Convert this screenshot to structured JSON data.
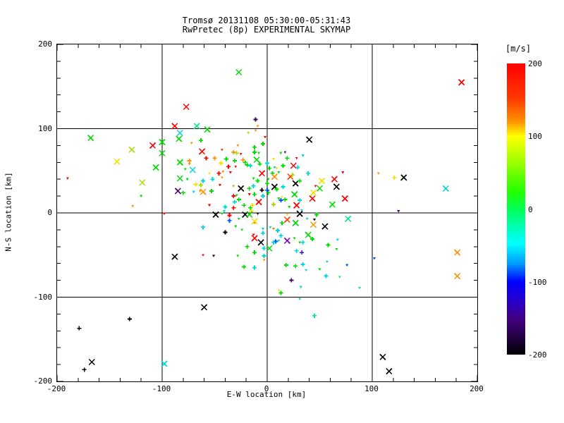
{
  "chart_data": {
    "type": "scatter",
    "title": "Tromsø 20131108 05:30:00-05:31:43",
    "subtitle": "RwPretec (8p) EXPERIMENTAL SKYMAP",
    "xlabel": "E-W location [km]",
    "ylabel": "N-S location [km]",
    "xlim": [
      -200,
      200
    ],
    "ylim": [
      -200,
      200
    ],
    "xticks": [
      -200,
      -100,
      0,
      100,
      200
    ],
    "yticks": [
      -200,
      -100,
      0,
      100,
      200
    ],
    "minor_tick_step": 20,
    "grid": true,
    "legend_position": "right-colorbar",
    "colorbar": {
      "label": "[m/s]",
      "min": -200,
      "max": 200,
      "ticks": [
        200,
        100,
        0,
        -100,
        -200
      ],
      "gradient": [
        {
          "pos": 0,
          "color": "#ff0000"
        },
        {
          "pos": 12,
          "color": "#ff3800"
        },
        {
          "pos": 20,
          "color": "#ff9400"
        },
        {
          "pos": 25,
          "color": "#ffff00"
        },
        {
          "pos": 33,
          "color": "#a8ff00"
        },
        {
          "pos": 44,
          "color": "#22ff00"
        },
        {
          "pos": 50,
          "color": "#00ff55"
        },
        {
          "pos": 58,
          "color": "#00ffd0"
        },
        {
          "pos": 62,
          "color": "#00ffff"
        },
        {
          "pos": 69,
          "color": "#0096ff"
        },
        {
          "pos": 75,
          "color": "#0000ff"
        },
        {
          "pos": 82,
          "color": "#2a00c8"
        },
        {
          "pos": 88,
          "color": "#44007e"
        },
        {
          "pos": 95,
          "color": "#1c0038"
        },
        {
          "pos": 100,
          "color": "#000000"
        }
      ]
    },
    "palette": {
      "r": "#ff0000",
      "or": "#ff4000",
      "o": "#ff9000",
      "y": "#f5e000",
      "ch": "#a8e000",
      "g": "#00dd00",
      "sg": "#00e888",
      "c": "#00d8d8",
      "b": "#0055ff",
      "db": "#2222cc",
      "pu": "#7700bb",
      "dp": "#440066",
      "k": "#000000"
    },
    "marker_legend": {
      "x": "cross-x",
      "p": "plus",
      "d": "small-dot"
    },
    "points": [
      [
        -77,
        126,
        "r",
        "x"
      ],
      [
        -88,
        103,
        "r",
        "x"
      ],
      [
        -83,
        95,
        "c",
        "x"
      ],
      [
        -67,
        103,
        "sg",
        "x"
      ],
      [
        -168,
        89,
        "g",
        "x"
      ],
      [
        -84,
        88,
        "g",
        "x"
      ],
      [
        -129,
        75,
        "ch",
        "x"
      ],
      [
        -109,
        80,
        "r",
        "x"
      ],
      [
        -100,
        84,
        "g",
        "x"
      ],
      [
        -72,
        83,
        "o",
        "d"
      ],
      [
        -100,
        71,
        "g",
        "x"
      ],
      [
        -27,
        167,
        "g",
        "x"
      ],
      [
        -11,
        111,
        "dp",
        "p"
      ],
      [
        -9,
        103,
        "o",
        "d"
      ],
      [
        -57,
        99,
        "g",
        "x"
      ],
      [
        -18,
        95,
        "ch",
        "d"
      ],
      [
        -11,
        98,
        "o",
        "d"
      ],
      [
        -2,
        90,
        "r",
        "d"
      ],
      [
        -63,
        86,
        "g",
        "p"
      ],
      [
        -4,
        82,
        "g",
        "p"
      ],
      [
        -28,
        80,
        "o",
        "d"
      ],
      [
        -12,
        78,
        "g",
        "p"
      ],
      [
        -62,
        73,
        "r",
        "x"
      ],
      [
        -43,
        75,
        "or",
        "d"
      ],
      [
        -32,
        72,
        "o",
        "p"
      ],
      [
        -29,
        71,
        "ch",
        "p"
      ],
      [
        -25,
        70,
        "r",
        "d"
      ],
      [
        -12,
        72,
        "g",
        "p"
      ],
      [
        -8,
        71,
        "g",
        "d"
      ],
      [
        40,
        87,
        "k",
        "x"
      ],
      [
        17,
        72,
        "pu",
        "d"
      ],
      [
        13,
        71,
        "g",
        "d"
      ],
      [
        34,
        68,
        "c",
        "d"
      ],
      [
        185,
        155,
        "r",
        "x"
      ],
      [
        -143,
        61,
        "y",
        "x"
      ],
      [
        -106,
        54,
        "g",
        "x"
      ],
      [
        -83,
        60,
        "g",
        "x"
      ],
      [
        -74,
        62,
        "o",
        "p"
      ],
      [
        -74,
        58,
        "o",
        "d"
      ],
      [
        -71,
        51,
        "c",
        "x"
      ],
      [
        -78,
        52,
        "g",
        "d"
      ],
      [
        -83,
        41,
        "g",
        "x"
      ],
      [
        -76,
        40,
        "g",
        "d"
      ],
      [
        -190,
        41,
        "r",
        "d"
      ],
      [
        -119,
        36,
        "ch",
        "x"
      ],
      [
        -68,
        34,
        "y",
        "p"
      ],
      [
        -85,
        26,
        "dp",
        "x"
      ],
      [
        -80,
        24,
        "g",
        "p"
      ],
      [
        -70,
        25,
        "c",
        "d"
      ],
      [
        -64,
        26,
        "o",
        "d"
      ],
      [
        -120,
        20,
        "g",
        "d"
      ],
      [
        -128,
        8,
        "o",
        "d"
      ],
      [
        -98,
        -1,
        "r",
        "d"
      ],
      [
        -88,
        -52,
        "k",
        "x"
      ],
      [
        -63,
        33,
        "ch",
        "p"
      ],
      [
        -25,
        29,
        "k",
        "x"
      ],
      [
        -10,
        63,
        "g",
        "x"
      ],
      [
        -5,
        47,
        "r",
        "x"
      ],
      [
        -8,
        13,
        "r",
        "x"
      ],
      [
        -61,
        25,
        "o",
        "x"
      ],
      [
        -58,
        65,
        "r",
        "p"
      ],
      [
        -50,
        65,
        "o",
        "p"
      ],
      [
        -39,
        64,
        "g",
        "p"
      ],
      [
        -44,
        59,
        "y",
        "p"
      ],
      [
        -31,
        62,
        "g",
        "p"
      ],
      [
        -23,
        63,
        "o",
        "p"
      ],
      [
        -19,
        57,
        "g",
        "p"
      ],
      [
        -16,
        56,
        "c",
        "p"
      ],
      [
        -37,
        55,
        "r",
        "p"
      ],
      [
        -42,
        49,
        "o",
        "d"
      ],
      [
        -43,
        42,
        "o",
        "d"
      ],
      [
        -46,
        47,
        "r",
        "p"
      ],
      [
        -35,
        48,
        "r",
        "d"
      ],
      [
        -30,
        55,
        "r",
        "d"
      ],
      [
        -21,
        60,
        "g",
        "p"
      ],
      [
        -52,
        40,
        "c",
        "p"
      ],
      [
        -53,
        26,
        "g",
        "p"
      ],
      [
        -32,
        20,
        "r",
        "p"
      ],
      [
        -29,
        21,
        "g",
        "d"
      ],
      [
        -31,
        13,
        "c",
        "p"
      ],
      [
        -27,
        16,
        "g",
        "p"
      ],
      [
        -55,
        9,
        "r",
        "d"
      ],
      [
        -40,
        7,
        "c",
        "p"
      ],
      [
        -22,
        9,
        "g",
        "p"
      ],
      [
        -16,
        6,
        "g",
        "p"
      ],
      [
        -14,
        9,
        "y",
        "p"
      ],
      [
        -7,
        58,
        "g",
        "p"
      ],
      [
        0,
        59,
        "c",
        "p"
      ],
      [
        2,
        53,
        "g",
        "p"
      ],
      [
        1,
        40,
        "g",
        "d"
      ],
      [
        0,
        35,
        "g",
        "p"
      ],
      [
        1,
        24,
        "g",
        "p"
      ],
      [
        -5,
        27,
        "k",
        "p"
      ],
      [
        -9,
        38,
        "g",
        "p"
      ],
      [
        -13,
        41,
        "g",
        "d"
      ],
      [
        -13,
        32,
        "c",
        "p"
      ],
      [
        -17,
        29,
        "g",
        "p"
      ],
      [
        -12,
        22,
        "g",
        "p"
      ],
      [
        -32,
        32,
        "o",
        "d"
      ],
      [
        -45,
        33,
        "r",
        "d"
      ],
      [
        -55,
        47,
        "y",
        "d"
      ],
      [
        -61,
        38,
        "c",
        "p"
      ],
      [
        -41,
        2,
        "c",
        "d"
      ],
      [
        -32,
        6,
        "r",
        "p"
      ],
      [
        -15,
        2,
        "y",
        "p"
      ],
      [
        6,
        64,
        "y",
        "d"
      ],
      [
        19,
        65,
        "g",
        "p"
      ],
      [
        28,
        65,
        "r",
        "d"
      ],
      [
        25,
        56,
        "r",
        "x"
      ],
      [
        29,
        54,
        "c",
        "p"
      ],
      [
        15,
        56,
        "g",
        "p"
      ],
      [
        7,
        54,
        "c",
        "d"
      ],
      [
        9,
        53,
        "y",
        "d"
      ],
      [
        11,
        48,
        "g",
        "d"
      ],
      [
        5,
        47,
        "g",
        "p"
      ],
      [
        22,
        43,
        "or",
        "x"
      ],
      [
        24,
        45,
        "ch",
        "p"
      ],
      [
        39,
        47,
        "c",
        "p"
      ],
      [
        27,
        35,
        "k",
        "x"
      ],
      [
        31,
        38,
        "g",
        "p"
      ],
      [
        52,
        38,
        "y",
        "x"
      ],
      [
        64,
        40,
        "r",
        "x"
      ],
      [
        46,
        32,
        "r",
        "d"
      ],
      [
        7,
        31,
        "k",
        "x"
      ],
      [
        50,
        29,
        "g",
        "x"
      ],
      [
        66,
        31,
        "k",
        "x"
      ],
      [
        44,
        24,
        "y",
        "x"
      ],
      [
        26,
        22,
        "g",
        "x"
      ],
      [
        9,
        28,
        "g",
        "p"
      ],
      [
        15,
        31,
        "c",
        "p"
      ],
      [
        17,
        16,
        "g",
        "p"
      ],
      [
        13,
        15,
        "b",
        "p"
      ],
      [
        11,
        17,
        "g",
        "d"
      ],
      [
        43,
        17,
        "r",
        "x"
      ],
      [
        31,
        15,
        "c",
        "p"
      ],
      [
        28,
        9,
        "r",
        "x"
      ],
      [
        62,
        10,
        "g",
        "x"
      ],
      [
        21,
        7,
        "g",
        "d"
      ],
      [
        33,
        3,
        "c",
        "d"
      ],
      [
        6,
        10,
        "ch",
        "p"
      ],
      [
        7,
        43,
        "o",
        "x"
      ],
      [
        0,
        27,
        "b",
        "p"
      ],
      [
        14,
        19,
        "y",
        "d"
      ],
      [
        -17,
        22,
        "r",
        "d"
      ],
      [
        -4,
        20,
        "c",
        "p"
      ],
      [
        -49,
        -2,
        "k",
        "x"
      ],
      [
        -43,
        -1,
        "g",
        "d"
      ],
      [
        -36,
        -3,
        "r",
        "p"
      ],
      [
        -36,
        -9,
        "b",
        "p"
      ],
      [
        -21,
        -2,
        "k",
        "x"
      ],
      [
        -17,
        -2,
        "g",
        "x"
      ],
      [
        -9,
        -1,
        "k",
        "d"
      ],
      [
        -12,
        -10,
        "y",
        "x"
      ],
      [
        -12,
        -12,
        "o",
        "d"
      ],
      [
        -27,
        -7,
        "g",
        "d"
      ],
      [
        -4,
        -19,
        "c",
        "d"
      ],
      [
        -30,
        -16,
        "g",
        "d"
      ],
      [
        -24,
        -20,
        "g",
        "d"
      ],
      [
        -40,
        -23,
        "k",
        "p"
      ],
      [
        -12,
        -30,
        "r",
        "x"
      ],
      [
        -13,
        -26,
        "r",
        "d"
      ],
      [
        -6,
        -35,
        "k",
        "x"
      ],
      [
        -4,
        -24,
        "c",
        "p"
      ],
      [
        -19,
        -40,
        "g",
        "p"
      ],
      [
        -61,
        -17,
        "c",
        "p"
      ],
      [
        -61,
        -50,
        "r",
        "d"
      ],
      [
        -51,
        -51,
        "k",
        "d"
      ],
      [
        -28,
        -51,
        "g",
        "d"
      ],
      [
        -12,
        -47,
        "g",
        "p"
      ],
      [
        -3,
        -42,
        "c",
        "p"
      ],
      [
        2,
        -42,
        "g",
        "x"
      ],
      [
        -3,
        -51,
        "c",
        "p"
      ],
      [
        -3,
        -56,
        "o",
        "d"
      ],
      [
        -22,
        -64,
        "g",
        "p"
      ],
      [
        -12,
        -65,
        "c",
        "p"
      ],
      [
        3,
        -17,
        "c",
        "d"
      ],
      [
        19,
        -2,
        "y",
        "d"
      ],
      [
        31,
        -1,
        "k",
        "x"
      ],
      [
        19,
        -8,
        "or",
        "x"
      ],
      [
        27,
        -12,
        "g",
        "x"
      ],
      [
        14,
        -12,
        "g",
        "p"
      ],
      [
        38,
        -7,
        "c",
        "d"
      ],
      [
        47,
        -2,
        "g",
        "p"
      ],
      [
        44,
        -14,
        "o",
        "x"
      ],
      [
        55,
        -16,
        "k",
        "x"
      ],
      [
        45,
        -8,
        "k",
        "d"
      ],
      [
        6,
        -19,
        "o",
        "d"
      ],
      [
        10,
        -21,
        "c",
        "p"
      ],
      [
        39,
        -26,
        "g",
        "x"
      ],
      [
        43,
        -31,
        "g",
        "p"
      ],
      [
        13,
        -27,
        "c",
        "p"
      ],
      [
        8,
        -34,
        "b",
        "p"
      ],
      [
        6,
        -35,
        "c",
        "p"
      ],
      [
        19,
        -33,
        "pu",
        "x"
      ],
      [
        11,
        -33,
        "c",
        "d"
      ],
      [
        26,
        -30,
        "g",
        "d"
      ],
      [
        31,
        -35,
        "g",
        "d"
      ],
      [
        34,
        -35,
        "c",
        "p"
      ],
      [
        58,
        -38,
        "g",
        "p"
      ],
      [
        67,
        -32,
        "c",
        "d"
      ],
      [
        66,
        -43,
        "g",
        "d"
      ],
      [
        33,
        -47,
        "db",
        "p"
      ],
      [
        28,
        -45,
        "c",
        "p"
      ],
      [
        27,
        -63,
        "g",
        "p"
      ],
      [
        34,
        -61,
        "c",
        "p"
      ],
      [
        57,
        -58,
        "c",
        "d"
      ],
      [
        18,
        -62,
        "g",
        "p"
      ],
      [
        72,
        48,
        "r",
        "d"
      ],
      [
        106,
        47,
        "o",
        "d"
      ],
      [
        121,
        42,
        "y",
        "p"
      ],
      [
        130,
        42,
        "k",
        "x"
      ],
      [
        170,
        29,
        "c",
        "x"
      ],
      [
        74,
        17,
        "r",
        "x"
      ],
      [
        77,
        -7,
        "sg",
        "x"
      ],
      [
        125,
        2,
        "dp",
        "d"
      ],
      [
        102,
        -54,
        "b",
        "d"
      ],
      [
        181,
        -47,
        "o",
        "x"
      ],
      [
        76,
        -62,
        "b",
        "d"
      ],
      [
        -131,
        -126,
        "k",
        "p"
      ],
      [
        -179,
        -137,
        "k",
        "p"
      ],
      [
        -167,
        -177,
        "k",
        "x"
      ],
      [
        -174,
        -186,
        "k",
        "p"
      ],
      [
        -98,
        -179,
        "c",
        "x"
      ],
      [
        37,
        -68,
        "c",
        "d"
      ],
      [
        50,
        -67,
        "g",
        "d"
      ],
      [
        23,
        -80,
        "dp",
        "p"
      ],
      [
        56,
        -75,
        "c",
        "p"
      ],
      [
        69,
        -76,
        "c",
        "d"
      ],
      [
        32,
        -88,
        "sg",
        "d"
      ],
      [
        11,
        -92,
        "y",
        "d"
      ],
      [
        13,
        -95,
        "g",
        "p"
      ],
      [
        31,
        -102,
        "c",
        "d"
      ],
      [
        -60,
        -112,
        "k",
        "x"
      ],
      [
        45,
        -122,
        "sg",
        "p"
      ],
      [
        181,
        -75,
        "o",
        "x"
      ],
      [
        88,
        -89,
        "c",
        "d"
      ],
      [
        110,
        -171,
        "k",
        "x"
      ],
      [
        116,
        -188,
        "k",
        "x"
      ]
    ]
  }
}
